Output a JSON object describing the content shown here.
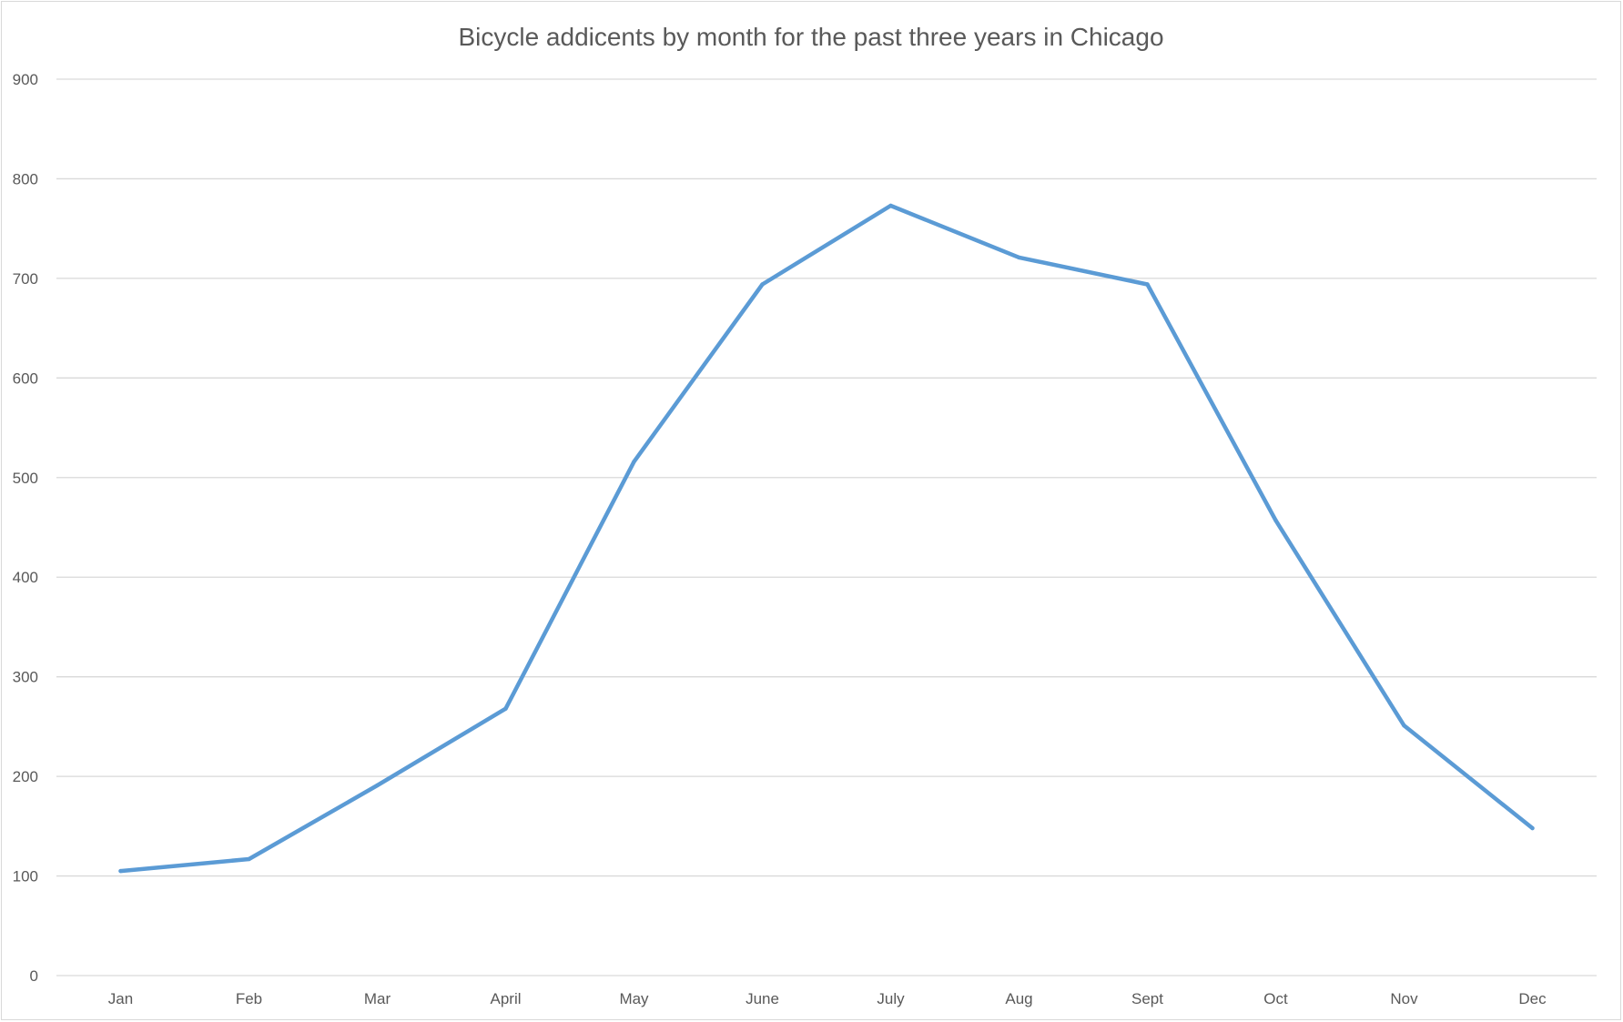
{
  "chart_data": {
    "type": "line",
    "title": "Bicycle addicents by month for the past three years in Chicago",
    "xlabel": "",
    "ylabel": "",
    "categories": [
      "Jan",
      "Feb",
      "Mar",
      "April",
      "May",
      "June",
      "July",
      "Aug",
      "Sept",
      "Oct",
      "Nov",
      "Dec"
    ],
    "series": [
      {
        "values": [
          105,
          117,
          191,
          268,
          516,
          694,
          773,
          721,
          694,
          457,
          251,
          148
        ],
        "color": "#5b9bd5"
      }
    ],
    "ylim": [
      0,
      900
    ],
    "yticks": [
      0,
      100,
      200,
      300,
      400,
      500,
      600,
      700,
      800,
      900
    ],
    "grid": "horizontal",
    "legend": "none"
  }
}
